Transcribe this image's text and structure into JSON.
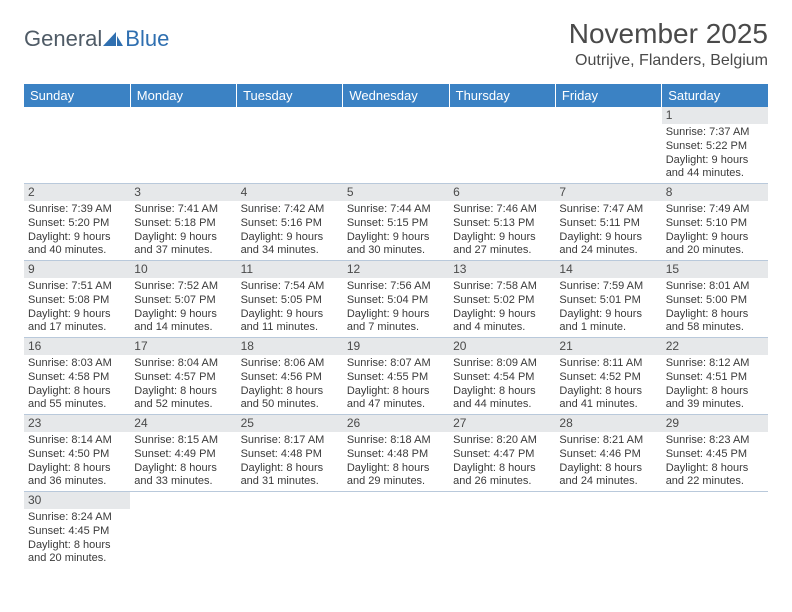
{
  "brand": {
    "general_text": "General",
    "blue_text": "Blue",
    "sail_color": "#2f6fb0"
  },
  "title": "November 2025",
  "location": "Outrijve, Flanders, Belgium",
  "colors": {
    "header_bg": "#3b82c4",
    "header_text": "#ffffff",
    "daynum_bg": "#e6e8ea",
    "body_text": "#3a3a3a",
    "grid_line": "#b9c9db",
    "page_bg": "#ffffff"
  },
  "weekday_headers": [
    "Sunday",
    "Monday",
    "Tuesday",
    "Wednesday",
    "Thursday",
    "Friday",
    "Saturday"
  ],
  "weeks": [
    [
      null,
      null,
      null,
      null,
      null,
      null,
      {
        "n": "1",
        "sr": "Sunrise: 7:37 AM",
        "ss": "Sunset: 5:22 PM",
        "dl1": "Daylight: 9 hours",
        "dl2": "and 44 minutes."
      }
    ],
    [
      {
        "n": "2",
        "sr": "Sunrise: 7:39 AM",
        "ss": "Sunset: 5:20 PM",
        "dl1": "Daylight: 9 hours",
        "dl2": "and 40 minutes."
      },
      {
        "n": "3",
        "sr": "Sunrise: 7:41 AM",
        "ss": "Sunset: 5:18 PM",
        "dl1": "Daylight: 9 hours",
        "dl2": "and 37 minutes."
      },
      {
        "n": "4",
        "sr": "Sunrise: 7:42 AM",
        "ss": "Sunset: 5:16 PM",
        "dl1": "Daylight: 9 hours",
        "dl2": "and 34 minutes."
      },
      {
        "n": "5",
        "sr": "Sunrise: 7:44 AM",
        "ss": "Sunset: 5:15 PM",
        "dl1": "Daylight: 9 hours",
        "dl2": "and 30 minutes."
      },
      {
        "n": "6",
        "sr": "Sunrise: 7:46 AM",
        "ss": "Sunset: 5:13 PM",
        "dl1": "Daylight: 9 hours",
        "dl2": "and 27 minutes."
      },
      {
        "n": "7",
        "sr": "Sunrise: 7:47 AM",
        "ss": "Sunset: 5:11 PM",
        "dl1": "Daylight: 9 hours",
        "dl2": "and 24 minutes."
      },
      {
        "n": "8",
        "sr": "Sunrise: 7:49 AM",
        "ss": "Sunset: 5:10 PM",
        "dl1": "Daylight: 9 hours",
        "dl2": "and 20 minutes."
      }
    ],
    [
      {
        "n": "9",
        "sr": "Sunrise: 7:51 AM",
        "ss": "Sunset: 5:08 PM",
        "dl1": "Daylight: 9 hours",
        "dl2": "and 17 minutes."
      },
      {
        "n": "10",
        "sr": "Sunrise: 7:52 AM",
        "ss": "Sunset: 5:07 PM",
        "dl1": "Daylight: 9 hours",
        "dl2": "and 14 minutes."
      },
      {
        "n": "11",
        "sr": "Sunrise: 7:54 AM",
        "ss": "Sunset: 5:05 PM",
        "dl1": "Daylight: 9 hours",
        "dl2": "and 11 minutes."
      },
      {
        "n": "12",
        "sr": "Sunrise: 7:56 AM",
        "ss": "Sunset: 5:04 PM",
        "dl1": "Daylight: 9 hours",
        "dl2": "and 7 minutes."
      },
      {
        "n": "13",
        "sr": "Sunrise: 7:58 AM",
        "ss": "Sunset: 5:02 PM",
        "dl1": "Daylight: 9 hours",
        "dl2": "and 4 minutes."
      },
      {
        "n": "14",
        "sr": "Sunrise: 7:59 AM",
        "ss": "Sunset: 5:01 PM",
        "dl1": "Daylight: 9 hours",
        "dl2": "and 1 minute."
      },
      {
        "n": "15",
        "sr": "Sunrise: 8:01 AM",
        "ss": "Sunset: 5:00 PM",
        "dl1": "Daylight: 8 hours",
        "dl2": "and 58 minutes."
      }
    ],
    [
      {
        "n": "16",
        "sr": "Sunrise: 8:03 AM",
        "ss": "Sunset: 4:58 PM",
        "dl1": "Daylight: 8 hours",
        "dl2": "and 55 minutes."
      },
      {
        "n": "17",
        "sr": "Sunrise: 8:04 AM",
        "ss": "Sunset: 4:57 PM",
        "dl1": "Daylight: 8 hours",
        "dl2": "and 52 minutes."
      },
      {
        "n": "18",
        "sr": "Sunrise: 8:06 AM",
        "ss": "Sunset: 4:56 PM",
        "dl1": "Daylight: 8 hours",
        "dl2": "and 50 minutes."
      },
      {
        "n": "19",
        "sr": "Sunrise: 8:07 AM",
        "ss": "Sunset: 4:55 PM",
        "dl1": "Daylight: 8 hours",
        "dl2": "and 47 minutes."
      },
      {
        "n": "20",
        "sr": "Sunrise: 8:09 AM",
        "ss": "Sunset: 4:54 PM",
        "dl1": "Daylight: 8 hours",
        "dl2": "and 44 minutes."
      },
      {
        "n": "21",
        "sr": "Sunrise: 8:11 AM",
        "ss": "Sunset: 4:52 PM",
        "dl1": "Daylight: 8 hours",
        "dl2": "and 41 minutes."
      },
      {
        "n": "22",
        "sr": "Sunrise: 8:12 AM",
        "ss": "Sunset: 4:51 PM",
        "dl1": "Daylight: 8 hours",
        "dl2": "and 39 minutes."
      }
    ],
    [
      {
        "n": "23",
        "sr": "Sunrise: 8:14 AM",
        "ss": "Sunset: 4:50 PM",
        "dl1": "Daylight: 8 hours",
        "dl2": "and 36 minutes."
      },
      {
        "n": "24",
        "sr": "Sunrise: 8:15 AM",
        "ss": "Sunset: 4:49 PM",
        "dl1": "Daylight: 8 hours",
        "dl2": "and 33 minutes."
      },
      {
        "n": "25",
        "sr": "Sunrise: 8:17 AM",
        "ss": "Sunset: 4:48 PM",
        "dl1": "Daylight: 8 hours",
        "dl2": "and 31 minutes."
      },
      {
        "n": "26",
        "sr": "Sunrise: 8:18 AM",
        "ss": "Sunset: 4:48 PM",
        "dl1": "Daylight: 8 hours",
        "dl2": "and 29 minutes."
      },
      {
        "n": "27",
        "sr": "Sunrise: 8:20 AM",
        "ss": "Sunset: 4:47 PM",
        "dl1": "Daylight: 8 hours",
        "dl2": "and 26 minutes."
      },
      {
        "n": "28",
        "sr": "Sunrise: 8:21 AM",
        "ss": "Sunset: 4:46 PM",
        "dl1": "Daylight: 8 hours",
        "dl2": "and 24 minutes."
      },
      {
        "n": "29",
        "sr": "Sunrise: 8:23 AM",
        "ss": "Sunset: 4:45 PM",
        "dl1": "Daylight: 8 hours",
        "dl2": "and 22 minutes."
      }
    ],
    [
      {
        "n": "30",
        "sr": "Sunrise: 8:24 AM",
        "ss": "Sunset: 4:45 PM",
        "dl1": "Daylight: 8 hours",
        "dl2": "and 20 minutes."
      },
      null,
      null,
      null,
      null,
      null,
      null
    ]
  ]
}
